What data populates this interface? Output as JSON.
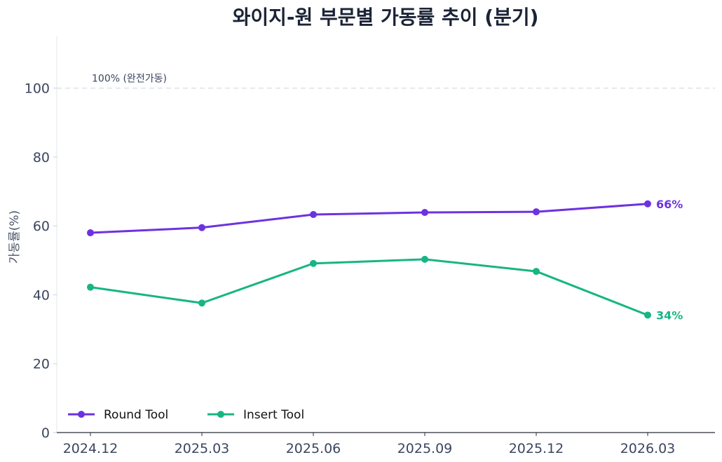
{
  "chart_data": {
    "type": "line",
    "title": "와이지-원 부문별 가동률 추이 (분기)",
    "ylabel": "가동률(%)",
    "xlabel": "",
    "categories": [
      "2024.12",
      "2025.03",
      "2025.06",
      "2025.09",
      "2025.12",
      "2026.03"
    ],
    "ylim": [
      0,
      115
    ],
    "yticks": [
      0,
      20,
      40,
      60,
      80,
      100
    ],
    "grid": false,
    "legend_position": "bottom-left",
    "reference_line": {
      "value": 100,
      "label": "100% (완전가동)",
      "style": "dashed"
    },
    "series": [
      {
        "name": "Round Tool",
        "color": "#6d32e0",
        "values": [
          58.0,
          59.5,
          63.3,
          63.9,
          64.1,
          66.4
        ],
        "end_label": "66%"
      },
      {
        "name": "Insert Tool",
        "color": "#17b584",
        "values": [
          42.2,
          37.6,
          49.1,
          50.3,
          46.8,
          34.1
        ],
        "end_label": "34%"
      }
    ]
  }
}
